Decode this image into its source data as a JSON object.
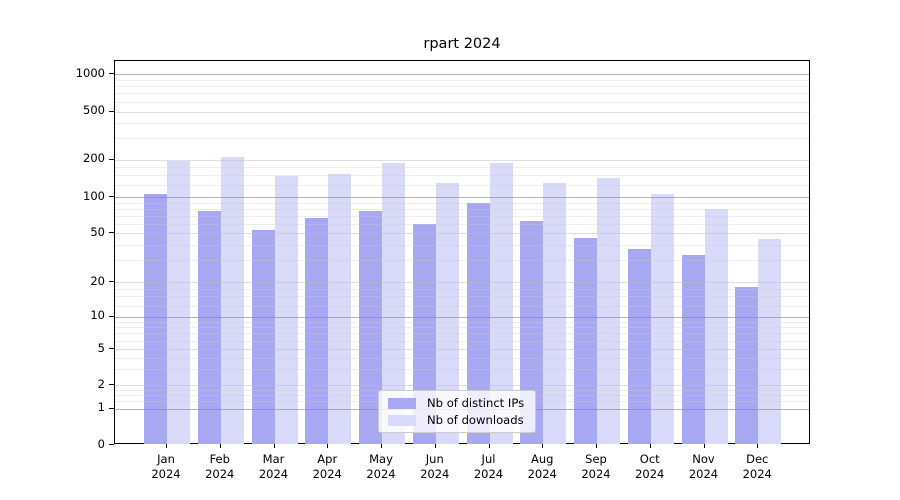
{
  "figure": {
    "title": "rpart 2024"
  },
  "legend": {
    "items": [
      {
        "label": "Nb of distinct IPs",
        "color": "#a7a7f2"
      },
      {
        "label": "Nb of downloads",
        "color": "#d9d9f9"
      }
    ]
  },
  "chart_data": {
    "type": "bar",
    "title": "rpart 2024",
    "categories": [
      "Jan 2024",
      "Feb 2024",
      "Mar 2024",
      "Apr 2024",
      "May 2024",
      "Jun 2024",
      "Jul 2024",
      "Aug 2024",
      "Sep 2024",
      "Oct 2024",
      "Nov 2024",
      "Dec 2024"
    ],
    "series": [
      {
        "name": "Nb of distinct IPs",
        "color": "#a7a7f2",
        "values": [
          106,
          77,
          53,
          67,
          77,
          60,
          89,
          63,
          46,
          37,
          33,
          18
        ]
      },
      {
        "name": "Nb of downloads",
        "color": "#d9d9f9",
        "values": [
          197,
          211,
          148,
          153,
          187,
          129,
          189,
          130,
          143,
          106,
          80,
          45
        ]
      }
    ],
    "y_ticks": [
      0,
      1,
      2,
      5,
      10,
      20,
      50,
      100,
      200,
      500,
      1000
    ],
    "ylim": [
      0,
      1000
    ],
    "y_scale": "log scale with zero baseline",
    "grid": "horizontal major + faint log minor gridlines",
    "legend_position": "bottom-center inside plot",
    "xlabel": "",
    "ylabel": ""
  }
}
